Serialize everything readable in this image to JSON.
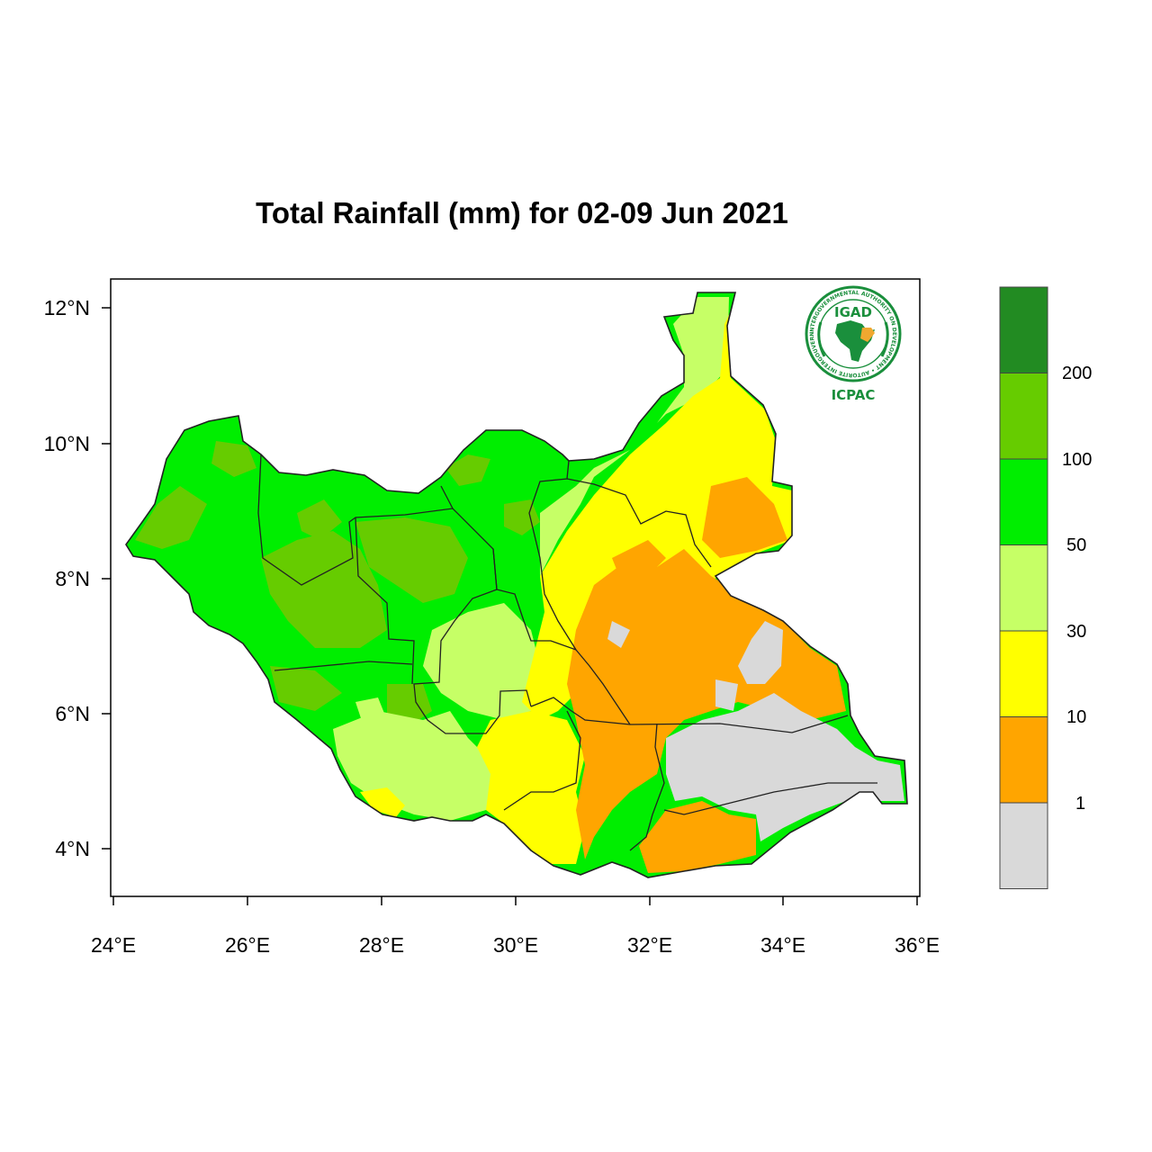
{
  "title": "Total Rainfall (mm) for 02-09 Jun 2021",
  "axes": {
    "x_ticks": [
      "24°E",
      "26°E",
      "28°E",
      "30°E",
      "32°E",
      "34°E",
      "36°E"
    ],
    "y_ticks": [
      "12°N",
      "10°N",
      "8°N",
      "6°N",
      "4°N"
    ]
  },
  "legend": {
    "labels": [
      "200",
      "100",
      "50",
      "30",
      "10",
      "1"
    ],
    "colors": [
      "#228b22",
      "#66cc00",
      "#00ee00",
      "#c6ff66",
      "#ffff00",
      "#ffa500",
      "#d9d9d9"
    ]
  },
  "logo": {
    "top_text": "IGAD",
    "bottom_text": "ICPAC",
    "ring_text": "INTERGOVERNMENTAL AUTHORITY ON DEVELOPMENT • AUTORITE INTERGOUVERNEMENTALE POUR LE DEVELOPPEMENT"
  },
  "map": {
    "extent": {
      "lon_min": 24,
      "lon_max": 36,
      "lat_min": 3.5,
      "lat_max": 12.5
    }
  }
}
